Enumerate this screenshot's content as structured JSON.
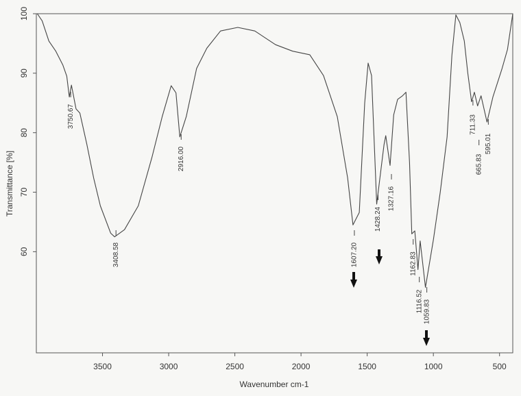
{
  "chart_data": {
    "type": "line",
    "xlabel": "Wavenumber cm-1",
    "ylabel": "Transmittance [%]",
    "x": [
      3993,
      3956,
      3905,
      3853,
      3800,
      3770,
      3750.67,
      3735,
      3700,
      3671,
      3619,
      3567,
      3516,
      3438,
      3408.58,
      3334,
      3230,
      3127,
      3049,
      2981,
      2945,
      2916,
      2867,
      2789,
      2712,
      2608,
      2478,
      2349,
      2193,
      2063,
      1934,
      1830,
      1726,
      1648,
      1607.2,
      1560,
      1519,
      1493,
      1467,
      1428.24,
      1373,
      1360,
      1327.16,
      1300,
      1270,
      1233,
      1207,
      1180,
      1162.83,
      1140,
      1116.52,
      1100,
      1059.83,
      1000,
      948,
      896,
      860,
      830,
      800,
      766,
      740,
      711.33,
      690,
      665.83,
      640,
      595.01,
      550,
      481,
      440,
      400
    ],
    "series": [
      {
        "name": "Transmittance",
        "color": "#444444",
        "values": [
          100,
          98.8,
          95.4,
          93.7,
          91.4,
          89.5,
          86,
          88,
          84,
          83.3,
          78.1,
          72.4,
          67.7,
          63.1,
          62.5,
          63.7,
          67.7,
          75.8,
          82.7,
          87.9,
          86.7,
          79.3,
          82.7,
          90.8,
          94.2,
          97.1,
          97.7,
          97.1,
          94.8,
          93.7,
          93.1,
          89.6,
          82.7,
          72.4,
          64.5,
          66.6,
          85,
          91.7,
          89.6,
          68,
          78,
          79.5,
          74.5,
          83,
          85.6,
          86.2,
          86.8,
          75,
          63,
          63.5,
          57,
          61.8,
          54,
          62,
          70,
          79.3,
          93,
          99.8,
          98.5,
          95.4,
          90,
          85.2,
          86.8,
          84.5,
          86.2,
          81.8,
          86,
          90.8,
          94,
          100
        ]
      }
    ],
    "xlim": [
      4000,
      400
    ],
    "xticks": [
      3500,
      3000,
      2500,
      2000,
      1500,
      1000,
      500
    ],
    "ylim": [
      43,
      100
    ],
    "yticks": [
      60,
      70,
      80,
      90,
      100
    ],
    "grid": false,
    "annotations": [
      {
        "text": "3750.67",
        "x": 3750.67
      },
      {
        "text": "3408.58",
        "x": 3408.58
      },
      {
        "text": "2916.00",
        "x": 2916.0
      },
      {
        "text": "1607.20",
        "x": 1607.2
      },
      {
        "text": "1428.24",
        "x": 1428.24
      },
      {
        "text": "1327.16",
        "x": 1327.16
      },
      {
        "text": "1162.83",
        "x": 1162.83
      },
      {
        "text": "1116.52",
        "x": 1116.52
      },
      {
        "text": "1059.83",
        "x": 1059.83
      },
      {
        "text": "711.33",
        "x": 711.33
      },
      {
        "text": "665.83",
        "x": 665.83
      },
      {
        "text": "595.01",
        "x": 595.01
      }
    ]
  }
}
